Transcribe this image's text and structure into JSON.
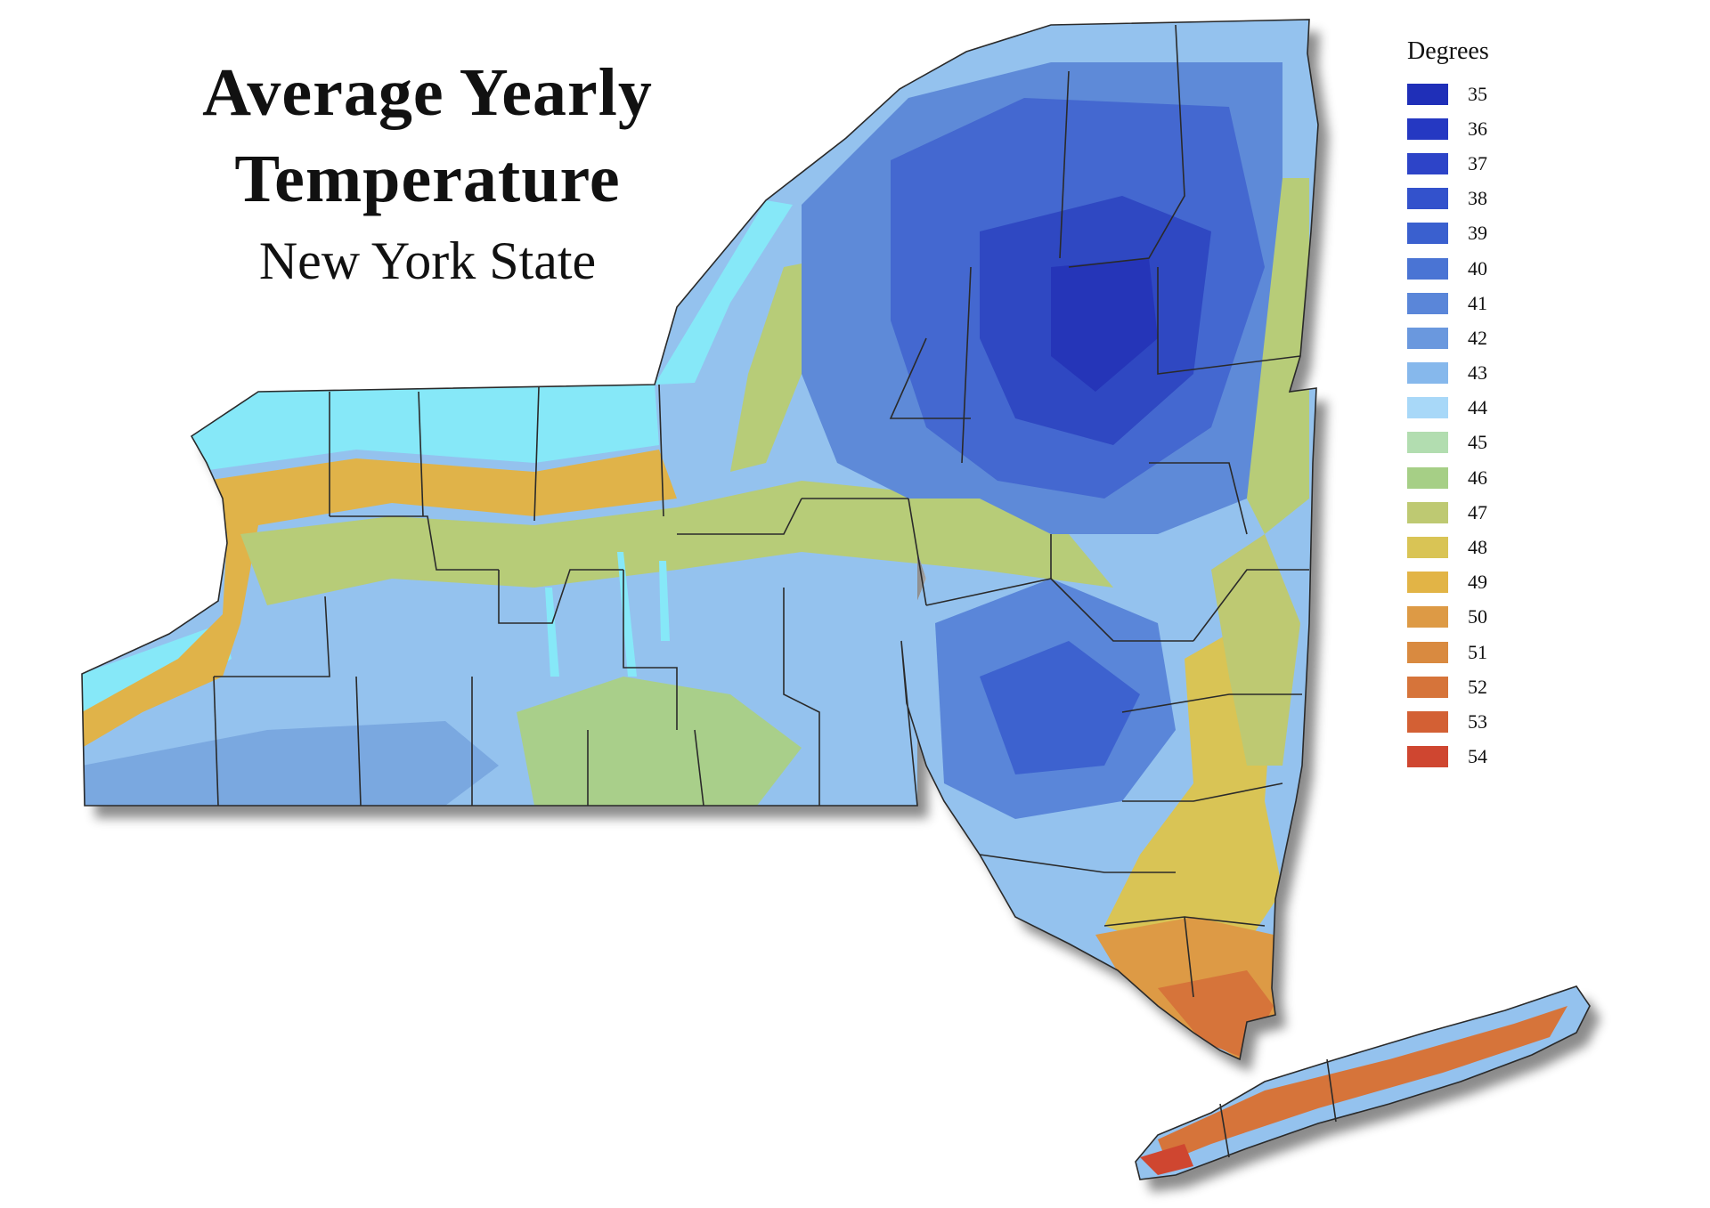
{
  "title": {
    "line1": "Average Yearly",
    "line2": "Temperature",
    "subtitle": "New York State"
  },
  "legend": {
    "title": "Degrees",
    "items": [
      {
        "label": "35",
        "color": "#1f2fb8"
      },
      {
        "label": "36",
        "color": "#2538c2"
      },
      {
        "label": "37",
        "color": "#2d44c8"
      },
      {
        "label": "38",
        "color": "#3352cc"
      },
      {
        "label": "39",
        "color": "#3a60cf"
      },
      {
        "label": "40",
        "color": "#4a74d4"
      },
      {
        "label": "41",
        "color": "#5a86d9"
      },
      {
        "label": "42",
        "color": "#6a98de"
      },
      {
        "label": "43",
        "color": "#86b8ec"
      },
      {
        "label": "44",
        "color": "#a8d8f8"
      },
      {
        "label": "45",
        "color": "#b2ddb0"
      },
      {
        "label": "46",
        "color": "#a6cf86"
      },
      {
        "label": "47",
        "color": "#bec972"
      },
      {
        "label": "48",
        "color": "#d9c455"
      },
      {
        "label": "49",
        "color": "#e2b446"
      },
      {
        "label": "50",
        "color": "#dd9a45"
      },
      {
        "label": "51",
        "color": "#d98a40"
      },
      {
        "label": "52",
        "color": "#d6743a"
      },
      {
        "label": "53",
        "color": "#d36034"
      },
      {
        "label": "54",
        "color": "#cf4630"
      }
    ]
  },
  "colors": {
    "lake": "#86e8f8",
    "border": "#2a2a2a"
  }
}
